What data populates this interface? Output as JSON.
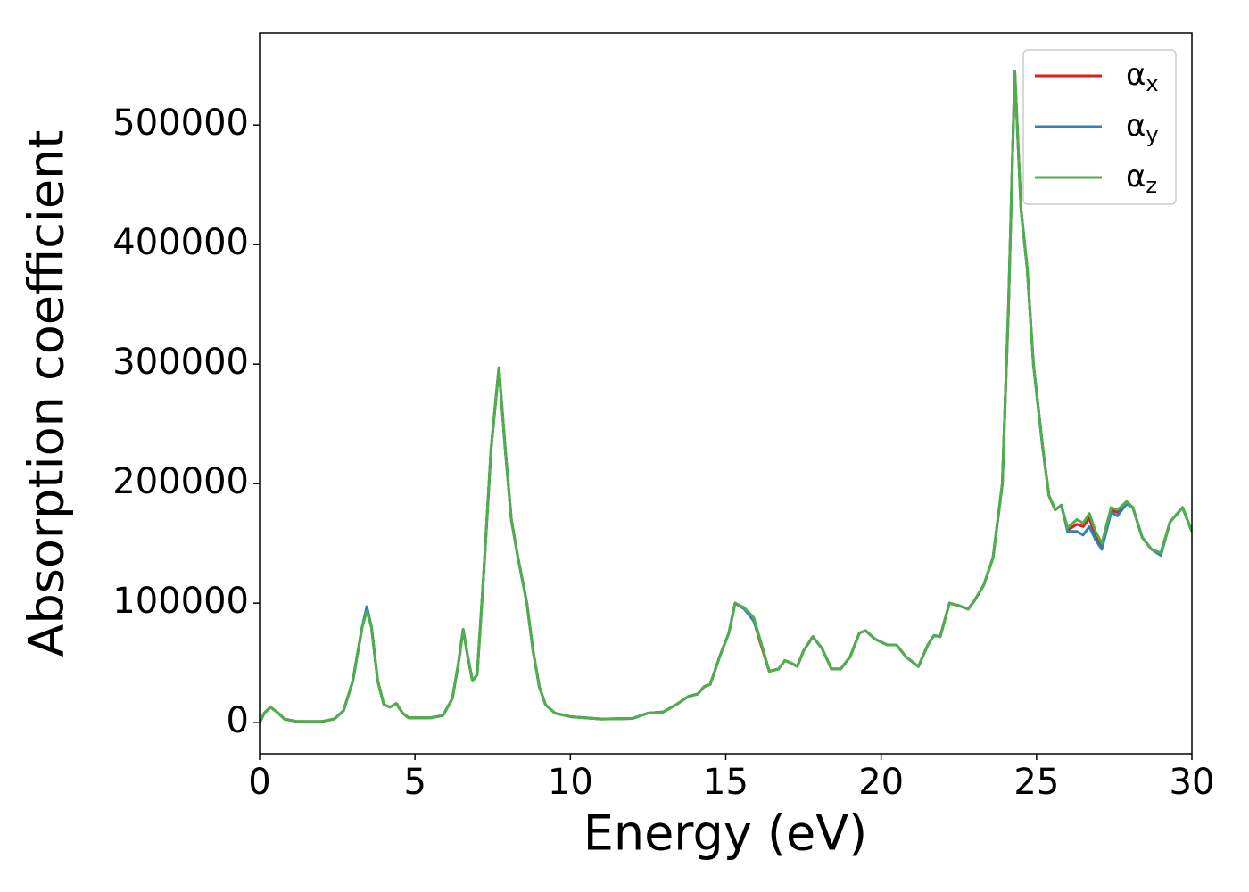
{
  "chart_data": {
    "type": "line",
    "xlabel": "Energy (eV)",
    "ylabel": "Absorption coefficient",
    "x": [
      0,
      0.15,
      0.35,
      0.6,
      0.8,
      1.2,
      2,
      2.4,
      2.7,
      3,
      3.3,
      3.45,
      3.6,
      3.8,
      4,
      4.2,
      4.4,
      4.6,
      4.8,
      5.5,
      5.9,
      6.2,
      6.4,
      6.55,
      6.7,
      6.85,
      7,
      7.2,
      7.45,
      7.7,
      7.9,
      8.1,
      8.3,
      8.6,
      8.8,
      9,
      9.2,
      9.5,
      10,
      11,
      12,
      12.5,
      13,
      13.4,
      13.8,
      14.1,
      14.3,
      14.5,
      14.8,
      15.1,
      15.3,
      15.6,
      15.9,
      16.1,
      16.4,
      16.7,
      16.9,
      17.1,
      17.3,
      17.5,
      17.8,
      18.1,
      18.4,
      18.7,
      19,
      19.3,
      19.5,
      19.8,
      20.2,
      20.5,
      20.8,
      21.2,
      21.5,
      21.7,
      21.9,
      22.2,
      22.5,
      22.8,
      23,
      23.3,
      23.6,
      23.9,
      24.1,
      24.3,
      24.5,
      24.7,
      24.9,
      25.2,
      25.4,
      25.6,
      25.8,
      26,
      26.3,
      26.5,
      26.7,
      26.9,
      27.1,
      27.4,
      27.6,
      27.9,
      28.1,
      28.4,
      28.7,
      29,
      29.3,
      29.7,
      30
    ],
    "series": [
      {
        "name": "αx",
        "color": "#e41a1c",
        "values": [
          0,
          8000,
          13000,
          8000,
          3000,
          1000,
          1000,
          3000,
          10000,
          35000,
          80000,
          95000,
          80000,
          35000,
          15000,
          13000,
          16000,
          8000,
          4000,
          4000,
          6000,
          20000,
          50000,
          78000,
          55000,
          35000,
          40000,
          120000,
          230000,
          297000,
          230000,
          170000,
          140000,
          100000,
          60000,
          30000,
          15000,
          8000,
          5000,
          3000,
          3500,
          8000,
          9000,
          15000,
          22000,
          24000,
          30000,
          32000,
          55000,
          75000,
          100000,
          96000,
          86000,
          68000,
          43000,
          45000,
          52000,
          50000,
          47000,
          60000,
          72000,
          62000,
          45000,
          45000,
          55000,
          75000,
          77000,
          70000,
          65000,
          65000,
          55000,
          47000,
          65000,
          73000,
          72000,
          100000,
          98000,
          95000,
          102000,
          115000,
          138000,
          200000,
          350000,
          545000,
          430000,
          380000,
          300000,
          230000,
          190000,
          178000,
          182000,
          161000,
          166000,
          164000,
          171000,
          156000,
          148000,
          178000,
          176000,
          185000,
          180000,
          155000,
          145000,
          142000,
          168000,
          180000,
          160000
        ]
      },
      {
        "name": "αy",
        "color": "#377eb8",
        "values": [
          0,
          8000,
          13000,
          8000,
          3000,
          1000,
          1000,
          3000,
          10000,
          35000,
          80000,
          97000,
          80000,
          35000,
          15000,
          13000,
          16000,
          8000,
          4000,
          4000,
          6000,
          20000,
          50000,
          78000,
          55000,
          35000,
          40000,
          120000,
          230000,
          297000,
          230000,
          170000,
          140000,
          100000,
          60000,
          30000,
          15000,
          8000,
          5000,
          3000,
          3500,
          8000,
          9000,
          15000,
          22000,
          24000,
          30000,
          32000,
          55000,
          75000,
          100000,
          95000,
          85000,
          70000,
          43000,
          45000,
          52000,
          50000,
          47000,
          60000,
          72000,
          62000,
          45000,
          45000,
          55000,
          75000,
          77000,
          70000,
          65000,
          65000,
          55000,
          47000,
          65000,
          73000,
          72000,
          100000,
          98000,
          95000,
          102000,
          115000,
          138000,
          200000,
          350000,
          545000,
          430000,
          380000,
          300000,
          230000,
          190000,
          178000,
          182000,
          160000,
          160000,
          157000,
          164000,
          153000,
          145000,
          176000,
          173000,
          183000,
          180000,
          155000,
          145000,
          140000,
          168000,
          180000,
          160000
        ]
      },
      {
        "name": "αz",
        "color": "#4daf4a",
        "values": [
          0,
          8000,
          13000,
          8000,
          3000,
          1000,
          1000,
          3000,
          10000,
          35000,
          80000,
          93000,
          80000,
          35000,
          15000,
          13000,
          16000,
          8000,
          4000,
          4000,
          6000,
          20000,
          50000,
          78000,
          55000,
          35000,
          40000,
          120000,
          230000,
          297000,
          230000,
          170000,
          140000,
          100000,
          60000,
          30000,
          15000,
          8000,
          5000,
          3000,
          3500,
          8000,
          9000,
          15000,
          22000,
          24000,
          30000,
          32000,
          55000,
          75000,
          100000,
          96000,
          88000,
          70000,
          43000,
          45000,
          52000,
          50000,
          47000,
          60000,
          72000,
          62000,
          45000,
          45000,
          55000,
          75000,
          77000,
          70000,
          65000,
          65000,
          55000,
          47000,
          65000,
          73000,
          72000,
          100000,
          98000,
          95000,
          102000,
          115000,
          138000,
          200000,
          350000,
          545000,
          430000,
          380000,
          300000,
          230000,
          190000,
          178000,
          182000,
          163000,
          170000,
          167000,
          175000,
          160000,
          150000,
          180000,
          178000,
          185000,
          180000,
          155000,
          145000,
          142000,
          168000,
          180000,
          160000
        ]
      }
    ],
    "xlim": [
      0,
      30
    ],
    "xticks": [
      0,
      5,
      10,
      15,
      20,
      25,
      30
    ],
    "ylim": [
      -26000,
      577000
    ],
    "yticks": [
      0,
      100000,
      200000,
      300000,
      400000,
      500000
    ],
    "legend": "upper right",
    "grid": false
  }
}
